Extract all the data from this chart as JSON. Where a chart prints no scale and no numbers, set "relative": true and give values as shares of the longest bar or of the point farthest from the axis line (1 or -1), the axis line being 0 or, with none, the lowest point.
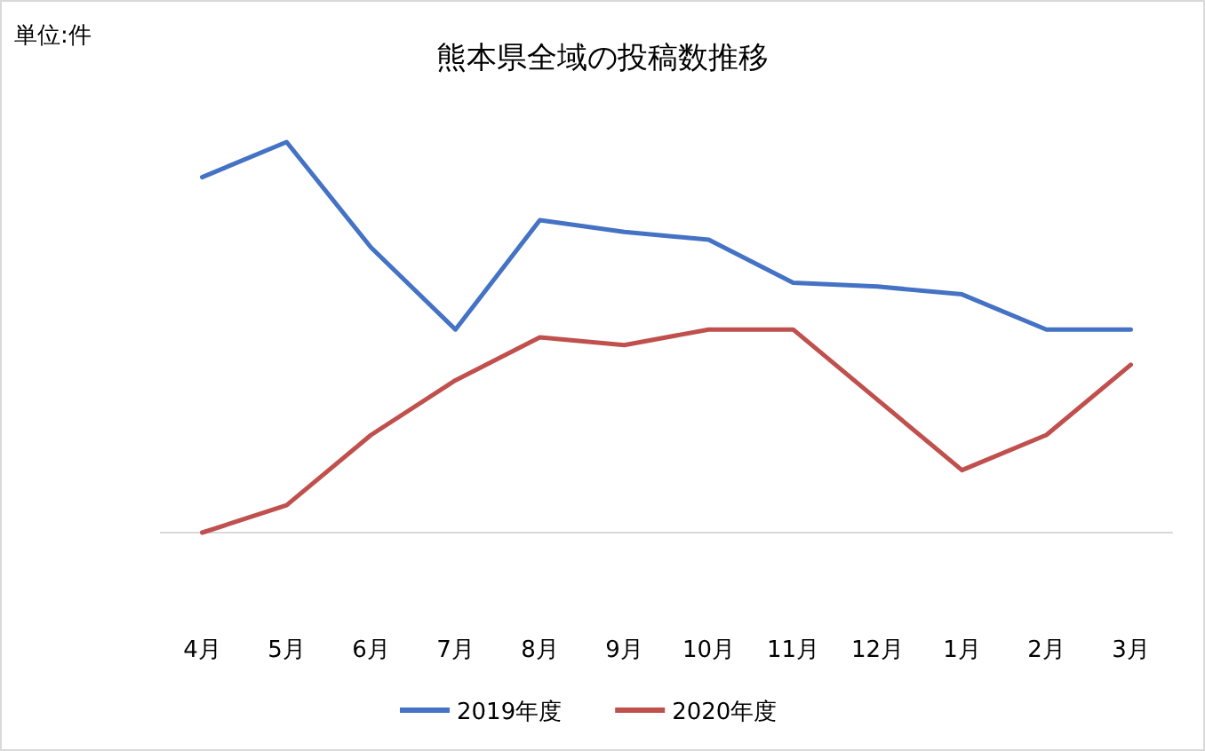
{
  "chart_data": {
    "type": "line",
    "title": "熊本県全域の投稿数推移",
    "annotations": [
      "単位:件"
    ],
    "relative": true,
    "legend": "bottom",
    "marker": "none",
    "line_style": "solid",
    "categories": [
      "4月",
      "5月",
      "6月",
      "7月",
      "8月",
      "9月",
      "10月",
      "11月",
      "12月",
      "1月",
      "2月",
      "3月"
    ],
    "series": [
      {
        "name": "2019年度",
        "color": "#4472c4",
        "values": [
          0.91,
          1,
          0.73,
          0.52,
          0.8,
          0.77,
          0.75,
          0.64,
          0.63,
          0.61,
          0.52,
          0.52
        ]
      },
      {
        "name": "2020年度",
        "color": "#c0504d",
        "values": [
          0,
          0.07,
          0.25,
          0.39,
          0.5,
          0.48,
          0.52,
          0.52,
          0.34,
          0.16,
          0.25,
          0.43
        ]
      }
    ]
  }
}
